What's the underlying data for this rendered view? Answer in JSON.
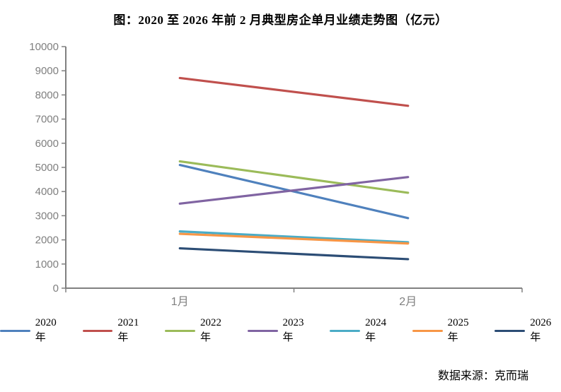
{
  "title": "图：2020 至 2026 年前 2 月典型房企单月业绩走势图（亿元）",
  "source": "数据来源：克而瑞",
  "chart_data": {
    "type": "line",
    "title": "图：2020 至 2026 年前 2 月典型房企单月业绩走势图（亿元）",
    "categories": [
      "1月",
      "2月"
    ],
    "series": [
      {
        "name": "2020年",
        "color": "#4F81BD",
        "values": [
          5100,
          2900
        ]
      },
      {
        "name": "2021年",
        "color": "#C0504D",
        "values": [
          8700,
          7550
        ]
      },
      {
        "name": "2022年",
        "color": "#9BBB59",
        "values": [
          5250,
          3950
        ]
      },
      {
        "name": "2023年",
        "color": "#8064A2",
        "values": [
          3500,
          4600
        ]
      },
      {
        "name": "2024年",
        "color": "#4BACC6",
        "values": [
          2350,
          1900
        ]
      },
      {
        "name": "2025年",
        "color": "#F79646",
        "values": [
          2250,
          1850
        ]
      },
      {
        "name": "2026年",
        "color": "#2C4D75",
        "values": [
          1650,
          1200
        ]
      }
    ],
    "xlabel": "",
    "ylabel": "",
    "ylim": [
      0,
      10000
    ],
    "ytick_step": 1000,
    "grid": false,
    "legend_position": "bottom",
    "axis_color": "#808080",
    "tick_label_color": "#7F7F7F"
  }
}
